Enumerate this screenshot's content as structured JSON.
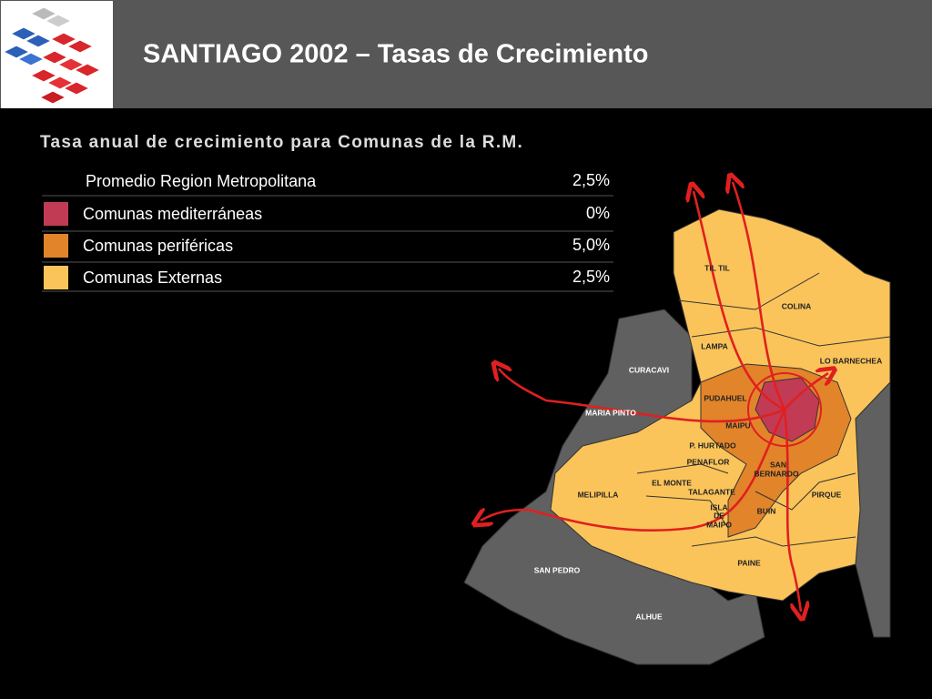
{
  "header": {
    "title": "SANTIAGO 2002 – Tasas de Crecimiento"
  },
  "legend": {
    "title": "Tasa anual de crecimiento para Comunas de la R.M.",
    "rows": [
      {
        "label": "Promedio Region Metropolitana",
        "value": "2,5%"
      },
      {
        "label": "Comunas mediterráneas",
        "value": "0%",
        "color": "#c23b55"
      },
      {
        "label": "Comunas periféricas",
        "value": "5,0%",
        "color": "#e2842a"
      },
      {
        "label": "Comunas Externas",
        "value": "2,5%",
        "color": "#fbc45a"
      }
    ]
  },
  "map": {
    "labels": [
      {
        "text": "TIL TIL"
      },
      {
        "text": "COLINA"
      },
      {
        "text": "LAMPA"
      },
      {
        "text": "LO BARNECHEA"
      },
      {
        "text": "CURACAVI"
      },
      {
        "text": "PUDAHUEL"
      },
      {
        "text": "MARIA PINTO"
      },
      {
        "text": "MAIPU"
      },
      {
        "text": "P. HURTADO"
      },
      {
        "text": "PENAFLOR"
      },
      {
        "text": "SAN"
      },
      {
        "text": "BERNARDO"
      },
      {
        "text": "EL MONTE"
      },
      {
        "text": "TALAGANTE"
      },
      {
        "text": "ISLA"
      },
      {
        "text": "DE"
      },
      {
        "text": "MAIPO"
      },
      {
        "text": "MELIPILLA"
      },
      {
        "text": "BUIN"
      },
      {
        "text": "PIRQUE"
      },
      {
        "text": "PAINE"
      },
      {
        "text": "SAN PEDRO"
      },
      {
        "text": "ALHUE"
      }
    ]
  }
}
